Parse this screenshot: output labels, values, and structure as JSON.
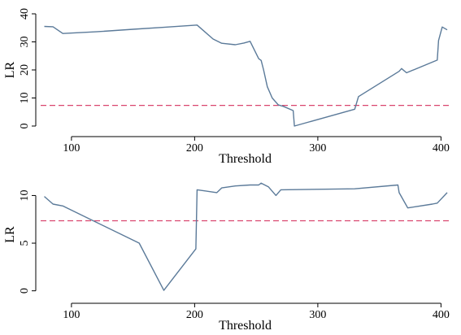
{
  "colors": {
    "series_line": "#5b7a99",
    "threshold_line": "#d9466f",
    "axis": "#000000"
  },
  "chart_data": [
    {
      "type": "line",
      "title": "",
      "xlabel": "Threshold",
      "ylabel": "LR",
      "xlim": [
        75,
        407
      ],
      "ylim": [
        0,
        40
      ],
      "xticks": [
        100,
        200,
        300,
        400
      ],
      "yticks": [
        0,
        10,
        20,
        30,
        40
      ],
      "grid": false,
      "reference_line": {
        "y": 7.35,
        "style": "dashed"
      },
      "series": [
        {
          "x": [
            78,
            85,
            93,
            120,
            150,
            175,
            202,
            215,
            222,
            233,
            240,
            245,
            252,
            254,
            256,
            259,
            263,
            268,
            272,
            280,
            281,
            330,
            333,
            366,
            368,
            372,
            397,
            398,
            401,
            405
          ],
          "y": [
            35.5,
            35.4,
            33,
            33.6,
            34.5,
            35.2,
            36,
            31,
            29.5,
            29,
            29.6,
            30.2,
            24,
            23.4,
            20,
            14,
            10,
            7.5,
            7,
            5.5,
            0,
            6,
            10.5,
            19.5,
            20.5,
            19,
            23.5,
            30.5,
            35.3,
            34.3
          ]
        }
      ]
    },
    {
      "type": "line",
      "title": "",
      "xlabel": "Threshold",
      "ylabel": "LR",
      "xlim": [
        75,
        407
      ],
      "ylim": [
        -0.2,
        12
      ],
      "xticks": [
        100,
        200,
        300,
        400
      ],
      "yticks": [
        0,
        5,
        10
      ],
      "grid": false,
      "reference_line": {
        "y": 7.35,
        "style": "dashed"
      },
      "series": [
        {
          "x": [
            78,
            85,
            93,
            155,
            175,
            201,
            202,
            218,
            222,
            233,
            245,
            252,
            254,
            260,
            266,
            270,
            330,
            365,
            366,
            373,
            393,
            397,
            405
          ],
          "y": [
            9.9,
            9.1,
            8.9,
            5,
            0.05,
            4.4,
            10.6,
            10.3,
            10.8,
            11,
            11.1,
            11.1,
            11.3,
            10.9,
            10,
            10.6,
            10.7,
            11.1,
            10.3,
            8.7,
            9.1,
            9.2,
            10.3
          ]
        }
      ]
    }
  ]
}
